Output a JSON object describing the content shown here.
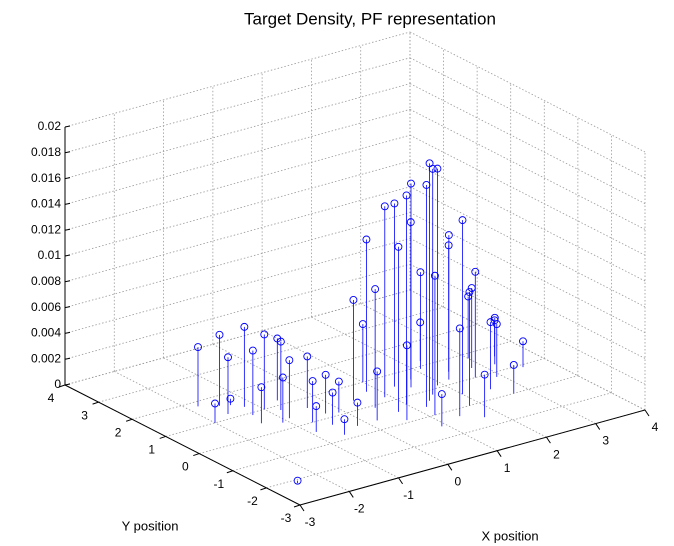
{
  "chart_data": {
    "type": "stem3",
    "title": "Target Density, PF representation",
    "x_label": "X position",
    "y_label": "Y position",
    "color": "#0000ff",
    "grid": true,
    "xlim": [
      -3,
      4
    ],
    "ylim": [
      -3,
      4
    ],
    "zlim": [
      0,
      0.02
    ],
    "xticks": [
      -3,
      -2,
      -1,
      0,
      1,
      2,
      3,
      4
    ],
    "yticks": [
      -3,
      -2,
      -1,
      0,
      1,
      2,
      3,
      4
    ],
    "zticks": [
      0,
      0.002,
      0.004,
      0.006,
      0.008,
      0.01,
      0.012,
      0.014,
      0.016,
      0.018,
      0.02
    ],
    "x": [
      1.4,
      1.6,
      1.2,
      1.9,
      1.0,
      1.5,
      0.9,
      1.3,
      2.0,
      0.7,
      1.7,
      0.8,
      2.2,
      1.1,
      2.4,
      0.5,
      1.8,
      2.6,
      0.4,
      2.1,
      1.4,
      2.8,
      0.6,
      2.5,
      3.0,
      1.0,
      2.9,
      0.2,
      3.2,
      1.7,
      2.3,
      3.4,
      0.9,
      2.7,
      3.5,
      -1.2,
      -1.0,
      -1.5,
      -0.8,
      -1.3,
      -0.6,
      -1.8,
      -0.9,
      -1.6,
      -0.4,
      -1.1,
      -0.7,
      -0.3,
      -1.4,
      -0.5,
      -0.1,
      -0.9,
      -0.2,
      -2.0,
      -0.6,
      -1.34,
      -2.47
    ],
    "y": [
      -0.4,
      -0.2,
      -0.6,
      0.1,
      -0.3,
      0.3,
      0.2,
      0.5,
      -0.5,
      -0.5,
      0.6,
      0.6,
      0.2,
      -1.0,
      0.5,
      -0.1,
      -1.0,
      0.0,
      0.4,
      0.9,
      -1.3,
      0.4,
      -0.9,
      -0.6,
      0.8,
      1.0,
      -0.2,
      -0.6,
      0.3,
      -1.6,
      1.2,
      0.6,
      -1.5,
      -1.0,
      -0.1,
      1.3,
      1.0,
      1.6,
      0.8,
      0.9,
      1.2,
      1.8,
      0.4,
      1.2,
      0.6,
      0.3,
      0.0,
      0.2,
      0.5,
      -0.3,
      0.1,
      -0.4,
      -0.6,
      1.0,
      -0.8,
      1.51,
      -2.15
    ],
    "z": [
      0.0184,
      0.0175,
      0.0172,
      0.0168,
      0.0162,
      0.0158,
      0.0148,
      0.0142,
      0.0135,
      0.0128,
      0.0122,
      0.0118,
      0.0112,
      0.0108,
      0.0098,
      0.0092,
      0.0088,
      0.0082,
      0.0078,
      0.0075,
      0.0068,
      0.0062,
      0.0058,
      0.0052,
      0.0048,
      0.0045,
      0.0041,
      0.0038,
      0.0036,
      0.0033,
      0.003,
      0.0028,
      0.0025,
      0.0022,
      0.002,
      0.0062,
      0.0058,
      0.0055,
      0.0053,
      0.005,
      0.0048,
      0.0046,
      0.0045,
      0.0044,
      0.004,
      0.0035,
      0.0032,
      0.003,
      0.0028,
      0.0025,
      0.0024,
      0.002,
      0.0018,
      0.0015,
      0.0012,
      0.0005,
      0.0002
    ]
  }
}
